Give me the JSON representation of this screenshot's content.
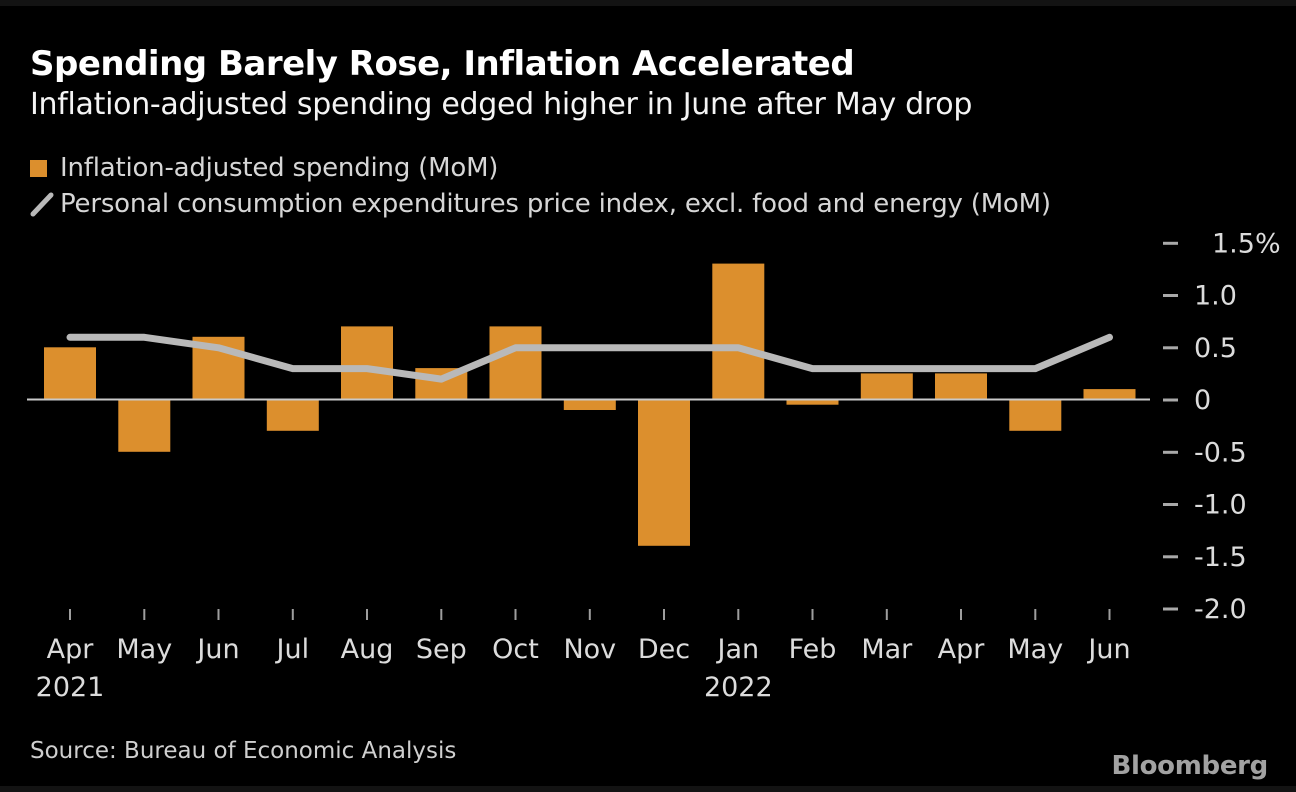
{
  "colors": {
    "background": "#000000",
    "bar_orange": "#DC8F2D",
    "line_gray": "#B9B9B9",
    "zero_line": "#C9C9C9",
    "axis_text": "#DCDCDC",
    "title_text": "#FFFFFF",
    "source_text": "#CFCFCF",
    "brand_text": "#A2A2A2"
  },
  "chart_data": {
    "type": "bar+line",
    "title": "Spending Barely Rose, Inflation Accelerated",
    "subtitle": "Inflation-adjusted spending edged higher in June after May drop",
    "categories": [
      "Apr",
      "May",
      "Jun",
      "Jul",
      "Aug",
      "Sep",
      "Oct",
      "Nov",
      "Dec",
      "Jan",
      "Feb",
      "Mar",
      "Apr",
      "May",
      "Jun"
    ],
    "year_markers": [
      {
        "index": 0,
        "label": "2021"
      },
      {
        "index": 9,
        "label": "2022"
      }
    ],
    "series": [
      {
        "name": "Inflation-adjusted spending (MoM)",
        "type": "bar",
        "color": "#DC8F2D",
        "values": [
          0.5,
          -0.5,
          0.6,
          -0.3,
          0.7,
          0.3,
          0.7,
          -0.1,
          -1.4,
          1.3,
          -0.05,
          0.25,
          0.25,
          -0.3,
          0.1
        ]
      },
      {
        "name": "Personal consumption expenditures price index, excl. food and energy (MoM)",
        "type": "line",
        "color": "#B9B9B9",
        "values": [
          0.6,
          0.6,
          0.5,
          0.3,
          0.3,
          0.2,
          0.5,
          0.5,
          0.5,
          0.5,
          0.3,
          0.3,
          0.3,
          0.3,
          0.6
        ]
      }
    ],
    "y_axis": {
      "unit": "%",
      "position": "right",
      "range": [
        -2.0,
        1.5
      ],
      "ticks": [
        1.5,
        1.0,
        0.5,
        0,
        -0.5,
        -1.0,
        -1.5,
        -2.0
      ],
      "tick_labels": [
        "1.5%",
        "1.0",
        "0.5",
        "0",
        "-0.5",
        "-1.0",
        "-1.5",
        "-2.0"
      ]
    },
    "grid": false,
    "legend_position": "top-left",
    "source": "Source: Bureau of Economic Analysis",
    "brand": "Bloomberg"
  }
}
